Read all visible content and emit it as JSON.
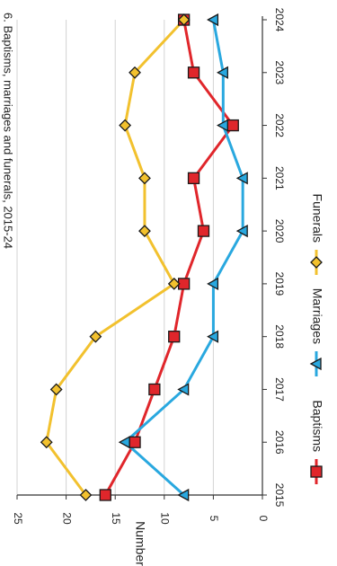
{
  "chart_data": {
    "type": "line",
    "title": "6. Baptisms, marriages and funerals, 2015-24",
    "ylabel": "Number",
    "xlabel": "",
    "x": [
      2015,
      2016,
      2017,
      2018,
      2019,
      2020,
      2021,
      2022,
      2023,
      2024
    ],
    "ylim": [
      0,
      25
    ],
    "yticks": [
      0,
      5,
      10,
      15,
      20,
      25
    ],
    "grid": true,
    "legend_position": "bottom",
    "series": [
      {
        "name": "Baptisms",
        "color": "#e0262b",
        "marker": "square",
        "values": [
          16,
          13,
          11,
          9,
          8,
          6,
          7,
          3,
          7,
          8
        ]
      },
      {
        "name": "Marriages",
        "color": "#29a8df",
        "marker": "triangle",
        "values": [
          8,
          14,
          8,
          5,
          5,
          2,
          2,
          4,
          4,
          5
        ]
      },
      {
        "name": "Funerals",
        "color": "#f2c12e",
        "marker": "diamond",
        "values": [
          18,
          22,
          21,
          17,
          9,
          12,
          12,
          14,
          13,
          8
        ]
      }
    ]
  }
}
